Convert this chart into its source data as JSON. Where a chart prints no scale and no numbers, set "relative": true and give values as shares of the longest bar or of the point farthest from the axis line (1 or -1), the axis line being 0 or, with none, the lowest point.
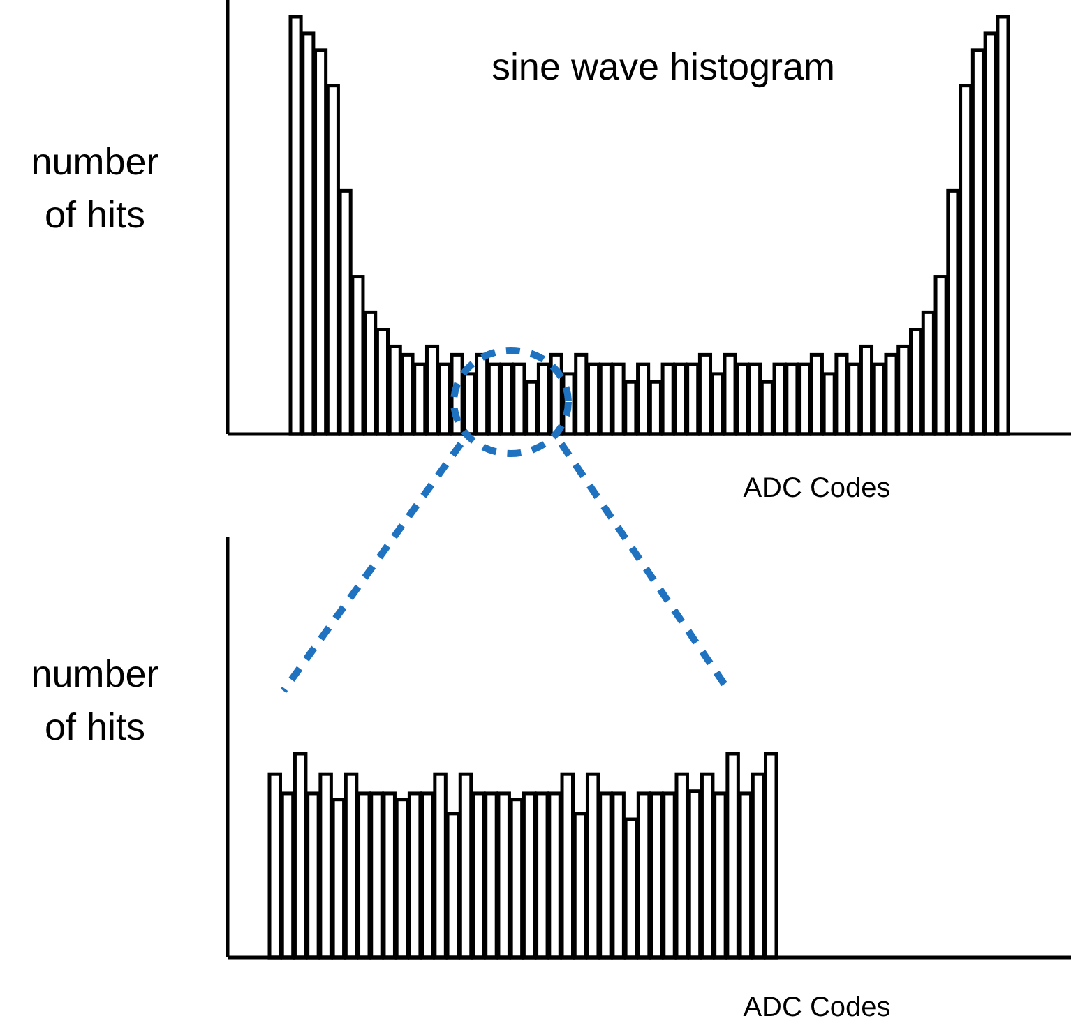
{
  "chart_data": [
    {
      "type": "bar",
      "title": "sine wave histogram",
      "xlabel": "ADC Codes",
      "ylabel": "number of hits",
      "relative": true,
      "color": "#ffffff",
      "categories": [
        null,
        null,
        null,
        null,
        null,
        null,
        null,
        null,
        null,
        null,
        null,
        null,
        null,
        null,
        null,
        null,
        null,
        null,
        null,
        null,
        null,
        null,
        null,
        null,
        null,
        null,
        null,
        null,
        null,
        null,
        null,
        null,
        null,
        null,
        null,
        null,
        null,
        null,
        null,
        null,
        null,
        null,
        null,
        null,
        null,
        null,
        null,
        null,
        null,
        null,
        null,
        null,
        null,
        null,
        null,
        null,
        null,
        null
      ],
      "values": [
        1.0,
        0.96,
        0.92,
        0.835,
        0.583,
        0.377,
        0.292,
        0.25,
        0.21,
        0.19,
        0.167,
        0.21,
        0.167,
        0.19,
        0.144,
        0.19,
        0.167,
        0.167,
        0.167,
        0.125,
        0.167,
        0.19,
        0.144,
        0.19,
        0.167,
        0.167,
        0.167,
        0.125,
        0.167,
        0.125,
        0.167,
        0.167,
        0.167,
        0.19,
        0.144,
        0.19,
        0.167,
        0.167,
        0.125,
        0.167,
        0.167,
        0.167,
        0.19,
        0.144,
        0.19,
        0.167,
        0.21,
        0.167,
        0.19,
        0.21,
        0.25,
        0.292,
        0.377,
        0.583,
        0.835,
        0.92,
        0.96,
        1.0
      ]
    },
    {
      "type": "bar",
      "xlabel": "ADC Codes",
      "ylabel": "number of hits",
      "relative": true,
      "color": "#ffffff",
      "categories": [
        null,
        null,
        null,
        null,
        null,
        null,
        null,
        null,
        null,
        null,
        null,
        null,
        null,
        null,
        null,
        null,
        null,
        null,
        null,
        null,
        null,
        null,
        null,
        null,
        null,
        null,
        null,
        null,
        null,
        null,
        null,
        null,
        null,
        null,
        null,
        null,
        null,
        null,
        null,
        null
      ],
      "values": [
        0.9,
        0.805,
        1.0,
        0.805,
        0.9,
        0.775,
        0.9,
        0.805,
        0.805,
        0.805,
        0.775,
        0.805,
        0.805,
        0.9,
        0.706,
        0.9,
        0.805,
        0.805,
        0.805,
        0.775,
        0.805,
        0.805,
        0.805,
        0.9,
        0.706,
        0.9,
        0.805,
        0.805,
        0.678,
        0.805,
        0.805,
        0.805,
        0.9,
        0.816,
        0.9,
        0.805,
        1.0,
        0.805,
        0.9,
        1.0
      ]
    }
  ]
}
